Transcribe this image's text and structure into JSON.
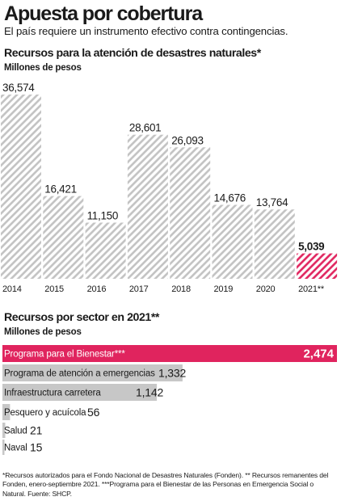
{
  "header": {
    "title": "Apuesta por cobertura",
    "subtitle": "El país requiere un instrumento efectivo contra contingencias."
  },
  "colors": {
    "accent": "#e0245e",
    "hatch_gray": "#c4c4c4",
    "text": "#1a1a1a"
  },
  "chart_data": [
    {
      "type": "bar",
      "title": "Recursos para la atención de desastres naturales*",
      "ylabel": "Millones de pesos",
      "categories": [
        "2014",
        "2015",
        "2016",
        "2017",
        "2018",
        "2019",
        "2020",
        "2021**"
      ],
      "values": [
        36574,
        16421,
        11150,
        28601,
        26093,
        14676,
        13764,
        5039
      ],
      "value_labels": [
        "36,574",
        "16,421",
        "11,150",
        "28,601",
        "26,093",
        "14,676",
        "13,764",
        "5,039"
      ],
      "highlight_index": 7,
      "ylim": [
        0,
        36574
      ],
      "grid": false
    },
    {
      "type": "bar",
      "orientation": "horizontal",
      "title": "Recursos por sector en 2021**",
      "ylabel": "Millones de pesos",
      "categories": [
        "Programa para el Bienestar***",
        "Programa de atención a emergencias",
        "Infraestructura carretera",
        "Pesquero y acuícola",
        "Salud",
        "Naval"
      ],
      "values": [
        2474,
        1332,
        1142,
        56,
        21,
        15
      ],
      "value_labels": [
        "2,474",
        "1,332",
        "1,142",
        "56",
        "21",
        "15"
      ],
      "highlight_index": 0,
      "xlim": [
        0,
        2474
      ],
      "grid": false
    }
  ],
  "footnote": "*Recursos autorizados para el Fondo Nacional de Desastres Naturales (Fonden). ** Recursos remanentes del Fonden, enero-septiembre 2021. ***Programa para el Bienestar de las Personas en Emergencia Social o Natural. Fuente: SHCP."
}
